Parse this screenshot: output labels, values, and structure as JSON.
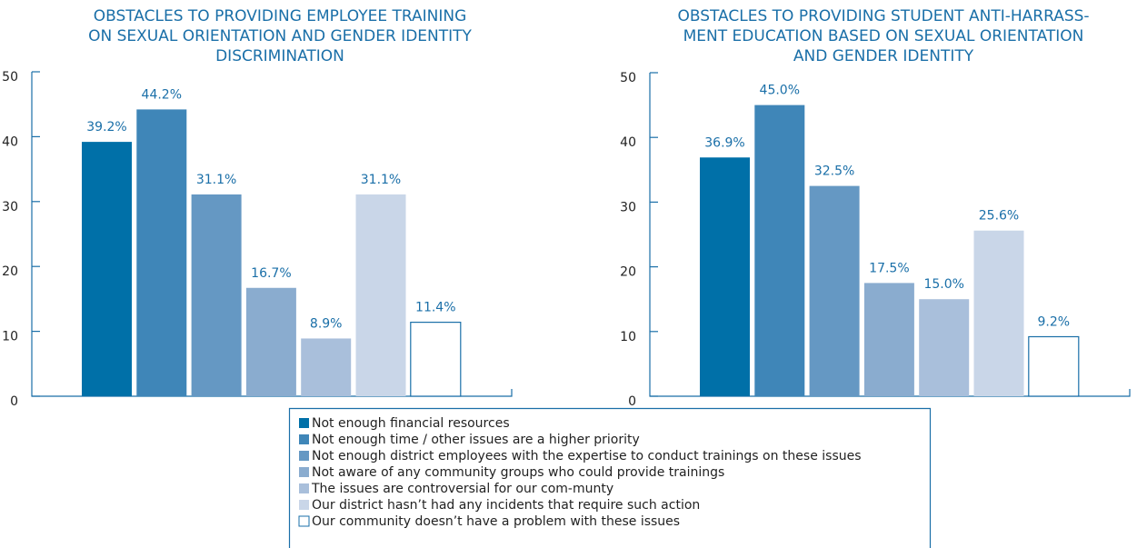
{
  "legend": {
    "items": [
      {
        "label": "Not enough financial resources",
        "color": "#0070a8"
      },
      {
        "label": "Not enough time / other issues are a higher priority",
        "color": "#3f86b8"
      },
      {
        "label": "Not enough district employees with the expertise to conduct trainings on these issues",
        "color": "#6598c3"
      },
      {
        "label": "Not aware of any community groups who could provide trainings",
        "color": "#8aaccf"
      },
      {
        "label": "The issues are controversial for our com-munty",
        "color": "#a9bfdb"
      },
      {
        "label": " Our district hasn’t had any incidents that require such action",
        "color": "#c9d6e8"
      },
      {
        "label": "Our community doesn’t have a problem with these issues",
        "color": "#ffffff"
      }
    ]
  },
  "chart_data": [
    {
      "type": "bar",
      "title": [
        "OBSTACLES TO PROVIDING EMPLOYEE TRAINING",
        "ON SEXUAL ORIENTATION AND GENDER IDENTITY",
        "DISCRIMINATION"
      ],
      "values": [
        39.2,
        44.2,
        31.1,
        16.7,
        8.9,
        31.1,
        11.4
      ],
      "value_labels": [
        "39.2%",
        "44.2%",
        "31.1%",
        "16.7%",
        "8.9%",
        "31.1%",
        "11.4%"
      ],
      "ylim": [
        0,
        50
      ],
      "yticks": [
        0,
        10,
        20,
        30,
        40,
        50
      ]
    },
    {
      "type": "bar",
      "title": [
        "OBSTACLES TO PROVIDING STUDENT ANTI-HARRASS-",
        "MENT EDUCATION BASED ON SEXUAL ORIENTATION",
        "AND GENDER IDENTITY"
      ],
      "values": [
        36.9,
        45.0,
        32.5,
        17.5,
        15.0,
        25.6,
        9.2
      ],
      "value_labels": [
        "36.9%",
        "45.0%",
        "32.5%",
        "17.5%",
        "15.0%",
        "25.6%",
        "9.2%"
      ],
      "ylim": [
        0,
        50
      ],
      "yticks": [
        0,
        10,
        20,
        30,
        40,
        50
      ]
    }
  ]
}
